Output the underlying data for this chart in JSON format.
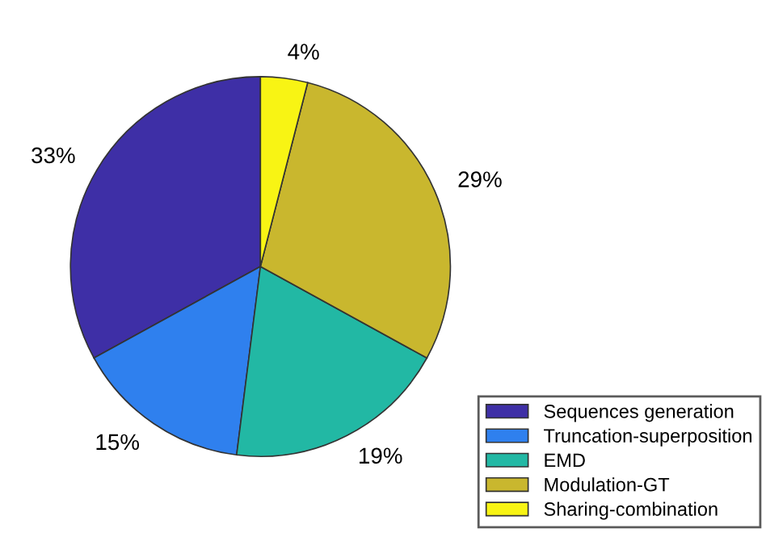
{
  "chart_data": {
    "type": "pie",
    "categories": [
      "Sequences generation",
      "Truncation-superposition",
      "EMD",
      "Modulation-GT",
      "Sharing-combination"
    ],
    "values": [
      33,
      15,
      19,
      29,
      4
    ],
    "value_labels": [
      "33%",
      "15%",
      "19%",
      "29%",
      "4%"
    ],
    "colors": [
      "#3e2fa6",
      "#2f80ee",
      "#22b8a4",
      "#c9b72e",
      "#f8f414"
    ],
    "legend": "bottom right"
  }
}
